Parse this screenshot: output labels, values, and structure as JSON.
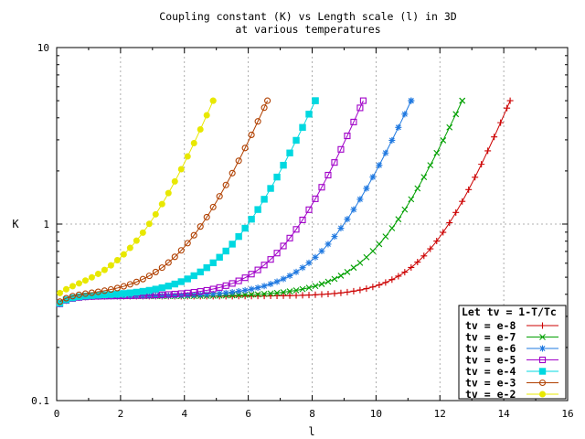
{
  "chart_data": {
    "type": "line",
    "title_line1": "Coupling constant (K) vs Length scale (l) in 3D",
    "title_line2": "at various temperatures",
    "xlabel": "l",
    "ylabel": "K",
    "xlim": [
      0,
      16
    ],
    "ylim": [
      0.1,
      10
    ],
    "ylog": true,
    "grid": true,
    "x_ticks": [
      "0",
      "2",
      "4",
      "6",
      "8",
      "10",
      "12",
      "14",
      "16"
    ],
    "y_ticks": [
      "0.1",
      "1",
      "10"
    ],
    "legend_title": "Let tv = 1-T/Tc",
    "legend_position": "bottom-right",
    "series": [
      {
        "name": "tv = e-8",
        "color": "#cc0000",
        "marker": "plus",
        "l_end": 14.2,
        "onset": 11.0
      },
      {
        "name": "tv = e-7",
        "color": "#00a000",
        "marker": "cross",
        "l_end": 12.7,
        "onset": 9.2
      },
      {
        "name": "tv = e-6",
        "color": "#1e78e0",
        "marker": "star",
        "l_end": 11.1,
        "onset": 7.6
      },
      {
        "name": "tv = e-5",
        "color": "#a000c8",
        "marker": "open-square",
        "l_end": 9.6,
        "onset": 6.3
      },
      {
        "name": "tv = e-4",
        "color": "#00d8e0",
        "marker": "filled-square",
        "l_end": 8.1,
        "onset": 4.6
      },
      {
        "name": "tv = e-3",
        "color": "#b04000",
        "marker": "open-circle",
        "l_end": 6.6,
        "onset": 3.2
      },
      {
        "name": "tv = e-2",
        "color": "#e8e800",
        "marker": "filled-circle",
        "l_end": 4.9,
        "onset": 1.5
      }
    ]
  }
}
